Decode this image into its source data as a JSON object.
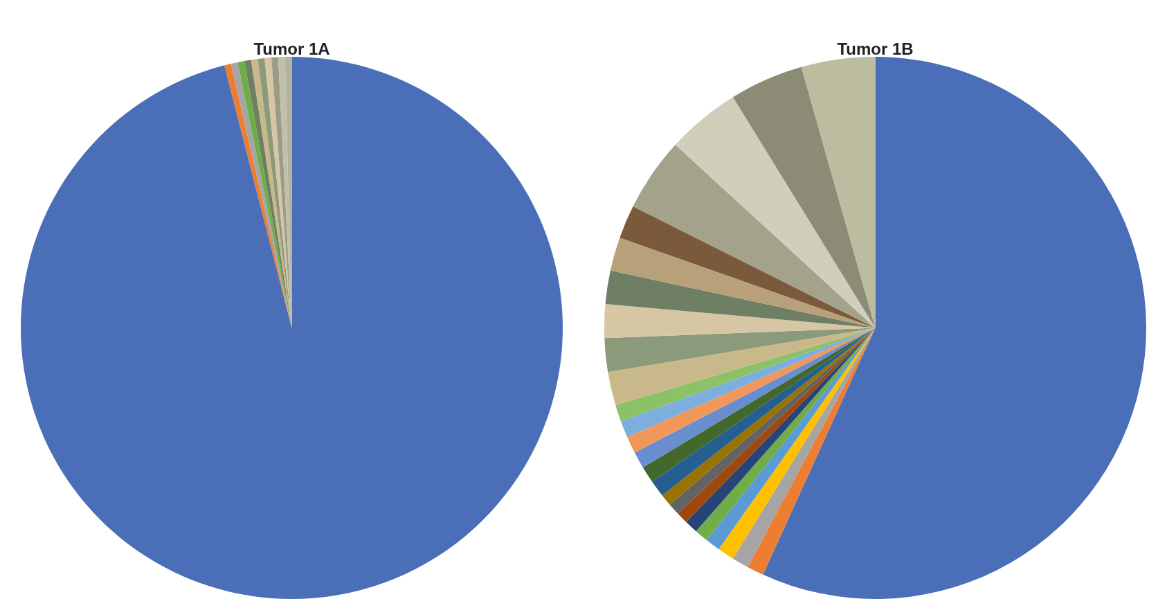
{
  "chart_data": [
    {
      "type": "pie",
      "title": "Tumor 1A",
      "categories": [
        null,
        null,
        null,
        null,
        null,
        null,
        null,
        null,
        null,
        null,
        null
      ],
      "values": [
        96.0,
        0.4,
        0.4,
        0.4,
        0.4,
        0.4,
        0.4,
        0.4,
        0.4,
        0.4,
        0.4
      ],
      "colors": [
        "#4a6fb8",
        "#ed7d31",
        "#a5a5a5",
        "#70ad47",
        "#6f7f63",
        "#c9b88a",
        "#8a9a7a",
        "#d6c6a4",
        "#9c9c86",
        "#c0c0aa",
        "#b4b49e"
      ]
    },
    {
      "type": "pie",
      "title": "Tumor 1B",
      "categories": [
        null,
        null,
        null,
        null,
        null,
        null,
        null,
        null,
        null,
        null,
        null,
        null,
        null,
        null,
        null,
        null,
        null,
        null,
        null,
        null,
        null,
        null,
        null,
        null,
        null,
        null
      ],
      "values": [
        56.8,
        1.0,
        1.0,
        1.0,
        0.9,
        0.8,
        0.8,
        0.7,
        0.7,
        0.7,
        1.0,
        1.0,
        1.0,
        1.0,
        1.0,
        1.0,
        2.0,
        2.0,
        2.0,
        2.0,
        2.0,
        2.0,
        4.4,
        4.4,
        4.4,
        4.4
      ],
      "colors": [
        "#4a6fb8",
        "#ed7d31",
        "#a5a5a5",
        "#ffc000",
        "#5b9bd5",
        "#70ad47",
        "#264478",
        "#9e480e",
        "#636363",
        "#997300",
        "#255e91",
        "#43682b",
        "#698ed0",
        "#f1975a",
        "#7cafdd",
        "#8cc168",
        "#c9b88a",
        "#8a9a7a",
        "#d6c6a4",
        "#6f7f63",
        "#b8a07a",
        "#7a5a3a",
        "#a3a38c",
        "#cfcfbc",
        "#8c8c76",
        "#bcbca0"
      ]
    }
  ]
}
